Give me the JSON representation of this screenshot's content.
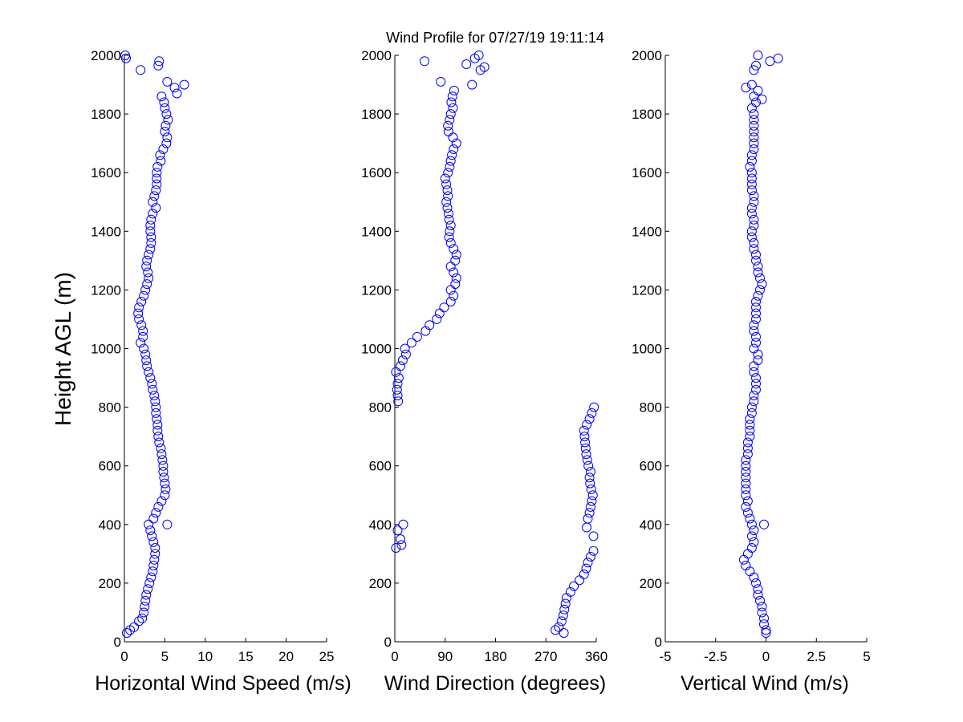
{
  "title": "Wind Profile for  07/27/19 19:11:14",
  "ylabel": "Height AGL (m)",
  "colors": {
    "marker": "#0000ff",
    "axis": "#000000"
  },
  "chart_data": [
    {
      "type": "scatter",
      "xlabel": "Horizontal Wind Speed (m/s)",
      "xlim": [
        0,
        25
      ],
      "ylim": [
        0,
        2000
      ],
      "xticks": [
        0,
        5,
        10,
        15,
        20,
        25
      ],
      "xtick_labels": [
        "0",
        "5",
        "10",
        "15",
        "20",
        "25"
      ],
      "yticks": [
        0,
        200,
        400,
        600,
        800,
        1000,
        1200,
        1400,
        1600,
        1800,
        2000
      ],
      "ytick_labels": [
        "0",
        "200",
        "400",
        "600",
        "800",
        "1000",
        "1200",
        "1400",
        "1600",
        "1800",
        "2000"
      ],
      "marker": "open-circle",
      "points": [
        [
          0.3,
          30
        ],
        [
          0.7,
          40
        ],
        [
          1.2,
          50
        ],
        [
          1.8,
          70
        ],
        [
          2.2,
          80
        ],
        [
          2.4,
          100
        ],
        [
          2.5,
          120
        ],
        [
          2.6,
          140
        ],
        [
          2.7,
          160
        ],
        [
          2.9,
          180
        ],
        [
          3.1,
          200
        ],
        [
          3.3,
          220
        ],
        [
          3.5,
          240
        ],
        [
          3.6,
          260
        ],
        [
          3.7,
          280
        ],
        [
          3.8,
          300
        ],
        [
          3.8,
          320
        ],
        [
          3.6,
          340
        ],
        [
          3.4,
          360
        ],
        [
          3.2,
          380
        ],
        [
          3.0,
          400
        ],
        [
          5.3,
          400
        ],
        [
          3.6,
          420
        ],
        [
          3.9,
          440
        ],
        [
          4.2,
          460
        ],
        [
          4.6,
          480
        ],
        [
          5.0,
          500
        ],
        [
          5.1,
          520
        ],
        [
          5.0,
          540
        ],
        [
          4.9,
          560
        ],
        [
          4.8,
          580
        ],
        [
          4.8,
          600
        ],
        [
          4.7,
          620
        ],
        [
          4.6,
          640
        ],
        [
          4.5,
          660
        ],
        [
          4.3,
          680
        ],
        [
          4.2,
          700
        ],
        [
          4.1,
          720
        ],
        [
          4.1,
          740
        ],
        [
          4.0,
          760
        ],
        [
          3.9,
          780
        ],
        [
          3.9,
          800
        ],
        [
          3.8,
          820
        ],
        [
          3.7,
          840
        ],
        [
          3.5,
          860
        ],
        [
          3.4,
          880
        ],
        [
          3.2,
          900
        ],
        [
          3.0,
          920
        ],
        [
          2.8,
          940
        ],
        [
          2.7,
          960
        ],
        [
          2.6,
          980
        ],
        [
          2.4,
          1000
        ],
        [
          2.0,
          1020
        ],
        [
          2.3,
          1040
        ],
        [
          2.3,
          1060
        ],
        [
          2.1,
          1080
        ],
        [
          1.8,
          1100
        ],
        [
          1.7,
          1120
        ],
        [
          1.8,
          1140
        ],
        [
          2.1,
          1160
        ],
        [
          2.4,
          1180
        ],
        [
          2.6,
          1200
        ],
        [
          2.8,
          1220
        ],
        [
          3.0,
          1240
        ],
        [
          2.9,
          1260
        ],
        [
          2.7,
          1280
        ],
        [
          2.8,
          1300
        ],
        [
          3.0,
          1320
        ],
        [
          3.2,
          1340
        ],
        [
          3.3,
          1360
        ],
        [
          3.3,
          1380
        ],
        [
          3.2,
          1400
        ],
        [
          3.2,
          1420
        ],
        [
          3.3,
          1440
        ],
        [
          3.5,
          1460
        ],
        [
          3.9,
          1480
        ],
        [
          3.5,
          1500
        ],
        [
          3.7,
          1520
        ],
        [
          3.9,
          1540
        ],
        [
          4.0,
          1560
        ],
        [
          4.0,
          1580
        ],
        [
          4.0,
          1600
        ],
        [
          4.1,
          1620
        ],
        [
          4.5,
          1640
        ],
        [
          4.4,
          1660
        ],
        [
          4.8,
          1680
        ],
        [
          5.2,
          1700
        ],
        [
          5.3,
          1720
        ],
        [
          5.0,
          1740
        ],
        [
          5.1,
          1760
        ],
        [
          5.4,
          1780
        ],
        [
          5.2,
          1800
        ],
        [
          5.0,
          1820
        ],
        [
          4.9,
          1840
        ],
        [
          4.6,
          1860
        ],
        [
          6.5,
          1870
        ],
        [
          6.2,
          1890
        ],
        [
          7.4,
          1900
        ],
        [
          5.3,
          1910
        ],
        [
          2.0,
          1950
        ],
        [
          4.2,
          1965
        ],
        [
          4.3,
          1980
        ],
        [
          0.2,
          1990
        ],
        [
          0.1,
          2000
        ]
      ]
    },
    {
      "type": "scatter",
      "xlabel": "Wind Direction (degrees)",
      "xlim": [
        0,
        360
      ],
      "ylim": [
        0,
        2000
      ],
      "xticks": [
        0,
        90,
        180,
        270,
        360
      ],
      "xtick_labels": [
        "0",
        "90",
        "180",
        "270",
        "360"
      ],
      "yticks": [
        0,
        200,
        400,
        600,
        800,
        1000,
        1200,
        1400,
        1600,
        1800,
        2000
      ],
      "ytick_labels": [
        "0",
        "200",
        "400",
        "600",
        "800",
        "1000",
        "1200",
        "1400",
        "1600",
        "1800",
        "2000"
      ],
      "marker": "open-circle",
      "points": [
        [
          302,
          30
        ],
        [
          287,
          40
        ],
        [
          293,
          50
        ],
        [
          298,
          70
        ],
        [
          301,
          90
        ],
        [
          303,
          110
        ],
        [
          305,
          130
        ],
        [
          307,
          150
        ],
        [
          314,
          170
        ],
        [
          320,
          190
        ],
        [
          330,
          210
        ],
        [
          338,
          230
        ],
        [
          342,
          250
        ],
        [
          345,
          270
        ],
        [
          350,
          290
        ],
        [
          355,
          310
        ],
        [
          2,
          320
        ],
        [
          12,
          330
        ],
        [
          10,
          350
        ],
        [
          355,
          360
        ],
        [
          5,
          380
        ],
        [
          343,
          390
        ],
        [
          15,
          400
        ],
        [
          345,
          420
        ],
        [
          348,
          440
        ],
        [
          350,
          460
        ],
        [
          352,
          480
        ],
        [
          354,
          500
        ],
        [
          351,
          520
        ],
        [
          349,
          540
        ],
        [
          348,
          560
        ],
        [
          350,
          580
        ],
        [
          346,
          600
        ],
        [
          344,
          620
        ],
        [
          342,
          640
        ],
        [
          341,
          660
        ],
        [
          340,
          680
        ],
        [
          339,
          700
        ],
        [
          338,
          720
        ],
        [
          343,
          740
        ],
        [
          348,
          760
        ],
        [
          352,
          780
        ],
        [
          356,
          800
        ],
        [
          6,
          820
        ],
        [
          5,
          840
        ],
        [
          4,
          860
        ],
        [
          5,
          880
        ],
        [
          7,
          900
        ],
        [
          2,
          920
        ],
        [
          10,
          940
        ],
        [
          14,
          960
        ],
        [
          20,
          980
        ],
        [
          18,
          1000
        ],
        [
          30,
          1020
        ],
        [
          40,
          1040
        ],
        [
          55,
          1060
        ],
        [
          62,
          1080
        ],
        [
          75,
          1100
        ],
        [
          80,
          1120
        ],
        [
          88,
          1140
        ],
        [
          100,
          1160
        ],
        [
          105,
          1180
        ],
        [
          100,
          1200
        ],
        [
          108,
          1220
        ],
        [
          110,
          1240
        ],
        [
          105,
          1260
        ],
        [
          100,
          1280
        ],
        [
          108,
          1300
        ],
        [
          110,
          1320
        ],
        [
          105,
          1340
        ],
        [
          100,
          1360
        ],
        [
          97,
          1380
        ],
        [
          98,
          1400
        ],
        [
          100,
          1420
        ],
        [
          97,
          1440
        ],
        [
          96,
          1460
        ],
        [
          94,
          1480
        ],
        [
          92,
          1500
        ],
        [
          95,
          1520
        ],
        [
          94,
          1540
        ],
        [
          92,
          1560
        ],
        [
          90,
          1580
        ],
        [
          95,
          1600
        ],
        [
          98,
          1620
        ],
        [
          100,
          1640
        ],
        [
          102,
          1660
        ],
        [
          105,
          1680
        ],
        [
          110,
          1700
        ],
        [
          104,
          1720
        ],
        [
          96,
          1740
        ],
        [
          95,
          1760
        ],
        [
          98,
          1780
        ],
        [
          100,
          1800
        ],
        [
          104,
          1820
        ],
        [
          101,
          1840
        ],
        [
          103,
          1860
        ],
        [
          106,
          1880
        ],
        [
          138,
          1900
        ],
        [
          82,
          1910
        ],
        [
          153,
          1950
        ],
        [
          160,
          1960
        ],
        [
          128,
          1970
        ],
        [
          53,
          1980
        ],
        [
          143,
          1990
        ],
        [
          150,
          2000
        ]
      ]
    },
    {
      "type": "scatter",
      "xlabel": "Vertical Wind (m/s)",
      "xlim": [
        -5,
        5
      ],
      "ylim": [
        0,
        2000
      ],
      "xticks": [
        -5,
        -2.5,
        0,
        2.5,
        5
      ],
      "xtick_labels": [
        "-5",
        "-2.5",
        "0",
        "2.5",
        "5"
      ],
      "yticks": [
        0,
        200,
        400,
        600,
        800,
        1000,
        1200,
        1400,
        1600,
        1800,
        2000
      ],
      "ytick_labels": [
        "0",
        "200",
        "400",
        "600",
        "800",
        "1000",
        "1200",
        "1400",
        "1600",
        "1800",
        "2000"
      ],
      "marker": "open-circle",
      "points": [
        [
          0.0,
          30
        ],
        [
          0.0,
          40
        ],
        [
          -0.1,
          60
        ],
        [
          -0.1,
          80
        ],
        [
          -0.2,
          100
        ],
        [
          -0.2,
          120
        ],
        [
          -0.3,
          140
        ],
        [
          -0.4,
          160
        ],
        [
          -0.4,
          180
        ],
        [
          -0.5,
          200
        ],
        [
          -0.6,
          220
        ],
        [
          -0.8,
          240
        ],
        [
          -1.0,
          260
        ],
        [
          -1.1,
          280
        ],
        [
          -0.9,
          300
        ],
        [
          -0.7,
          320
        ],
        [
          -0.6,
          340
        ],
        [
          -0.7,
          360
        ],
        [
          -0.6,
          380
        ],
        [
          -0.7,
          400
        ],
        [
          -0.1,
          400
        ],
        [
          -0.8,
          420
        ],
        [
          -0.9,
          440
        ],
        [
          -1.0,
          460
        ],
        [
          -0.9,
          480
        ],
        [
          -1.0,
          500
        ],
        [
          -1.0,
          520
        ],
        [
          -1.0,
          540
        ],
        [
          -1.0,
          560
        ],
        [
          -1.0,
          580
        ],
        [
          -1.0,
          600
        ],
        [
          -1.0,
          620
        ],
        [
          -0.9,
          640
        ],
        [
          -0.9,
          660
        ],
        [
          -0.9,
          680
        ],
        [
          -0.8,
          700
        ],
        [
          -0.8,
          720
        ],
        [
          -0.8,
          740
        ],
        [
          -0.8,
          760
        ],
        [
          -0.7,
          780
        ],
        [
          -0.7,
          800
        ],
        [
          -0.6,
          820
        ],
        [
          -0.6,
          840
        ],
        [
          -0.5,
          860
        ],
        [
          -0.5,
          880
        ],
        [
          -0.5,
          900
        ],
        [
          -0.6,
          920
        ],
        [
          -0.6,
          940
        ],
        [
          -0.4,
          960
        ],
        [
          -0.4,
          980
        ],
        [
          -0.6,
          1000
        ],
        [
          -0.5,
          1020
        ],
        [
          -0.5,
          1040
        ],
        [
          -0.6,
          1060
        ],
        [
          -0.6,
          1080
        ],
        [
          -0.5,
          1100
        ],
        [
          -0.5,
          1120
        ],
        [
          -0.5,
          1140
        ],
        [
          -0.5,
          1160
        ],
        [
          -0.4,
          1180
        ],
        [
          -0.3,
          1200
        ],
        [
          -0.2,
          1220
        ],
        [
          -0.3,
          1240
        ],
        [
          -0.4,
          1260
        ],
        [
          -0.4,
          1280
        ],
        [
          -0.5,
          1300
        ],
        [
          -0.5,
          1320
        ],
        [
          -0.6,
          1340
        ],
        [
          -0.6,
          1360
        ],
        [
          -0.7,
          1380
        ],
        [
          -0.7,
          1400
        ],
        [
          -0.6,
          1420
        ],
        [
          -0.6,
          1440
        ],
        [
          -0.7,
          1460
        ],
        [
          -0.7,
          1480
        ],
        [
          -0.6,
          1500
        ],
        [
          -0.6,
          1520
        ],
        [
          -0.7,
          1540
        ],
        [
          -0.7,
          1560
        ],
        [
          -0.7,
          1580
        ],
        [
          -0.7,
          1600
        ],
        [
          -0.8,
          1620
        ],
        [
          -0.7,
          1640
        ],
        [
          -0.7,
          1660
        ],
        [
          -0.6,
          1680
        ],
        [
          -0.6,
          1700
        ],
        [
          -0.6,
          1720
        ],
        [
          -0.6,
          1740
        ],
        [
          -0.6,
          1760
        ],
        [
          -0.6,
          1780
        ],
        [
          -0.6,
          1800
        ],
        [
          -0.7,
          1820
        ],
        [
          -0.5,
          1840
        ],
        [
          -0.2,
          1850
        ],
        [
          -0.6,
          1860
        ],
        [
          -0.4,
          1880
        ],
        [
          -1.0,
          1890
        ],
        [
          -0.7,
          1900
        ],
        [
          -0.6,
          1950
        ],
        [
          -0.5,
          1965
        ],
        [
          0.2,
          1980
        ],
        [
          0.6,
          1990
        ],
        [
          -0.4,
          2000
        ]
      ]
    }
  ]
}
